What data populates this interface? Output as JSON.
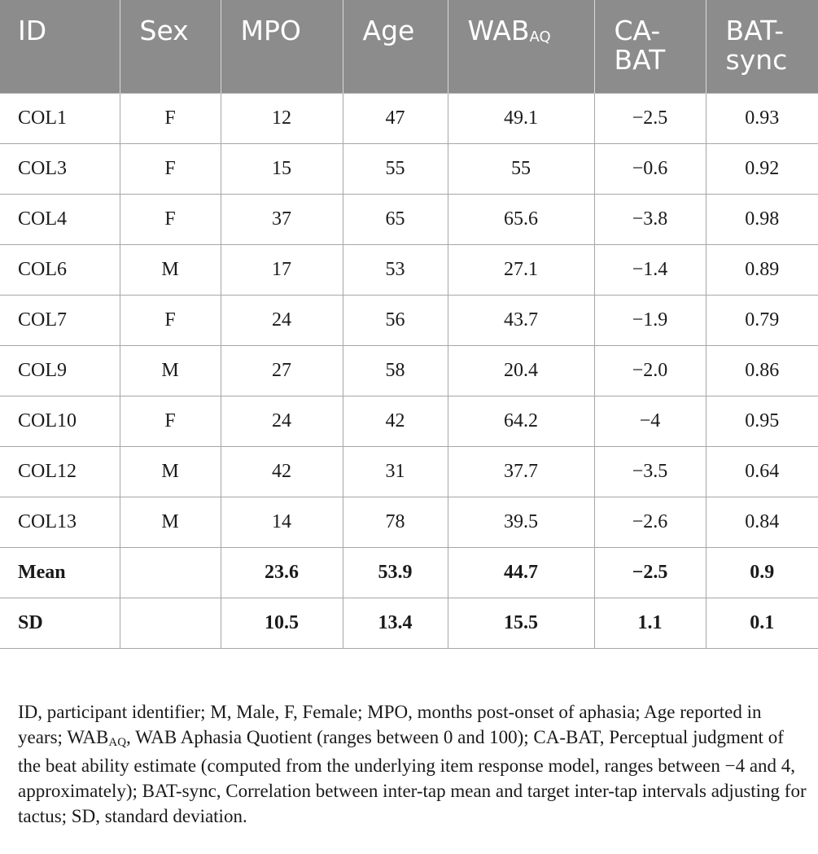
{
  "table": {
    "headers": {
      "id": "ID",
      "sex": "Sex",
      "mpo": "MPO",
      "age": "Age",
      "wab": "WAB",
      "wab_sub": "AQ",
      "cabat": "CA-BAT",
      "batsync": "BAT-sync"
    },
    "rows": [
      [
        "COL1",
        "F",
        "12",
        "47",
        "49.1",
        "−2.5",
        "0.93"
      ],
      [
        "COL3",
        "F",
        "15",
        "55",
        "55",
        "−0.6",
        "0.92"
      ],
      [
        "COL4",
        "F",
        "37",
        "65",
        "65.6",
        "−3.8",
        "0.98"
      ],
      [
        "COL6",
        "M",
        "17",
        "53",
        "27.1",
        "−1.4",
        "0.89"
      ],
      [
        "COL7",
        "F",
        "24",
        "56",
        "43.7",
        "−1.9",
        "0.79"
      ],
      [
        "COL9",
        "M",
        "27",
        "58",
        "20.4",
        "−2.0",
        "0.86"
      ],
      [
        "COL10",
        "F",
        "24",
        "42",
        "64.2",
        "−4",
        "0.95"
      ],
      [
        "COL12",
        "M",
        "42",
        "31",
        "37.7",
        "−3.5",
        "0.64"
      ],
      [
        "COL13",
        "M",
        "14",
        "78",
        "39.5",
        "−2.6",
        "0.84"
      ]
    ],
    "summary": [
      [
        "Mean",
        "",
        "23.6",
        "53.9",
        "44.7",
        "−2.5",
        "0.9"
      ],
      [
        "SD",
        "",
        "10.5",
        "13.4",
        "15.5",
        "1.1",
        "0.1"
      ]
    ]
  },
  "footnote": {
    "part1": "ID, participant identifier; M, Male, F, Female; MPO, months post-onset of aphasia; Age reported in years; WAB",
    "sub": "AQ",
    "part2": ", WAB Aphasia Quotient (ranges between 0 and 100); CA-BAT, Perceptual judgment of the beat ability estimate (computed from the underlying item response model, ranges between −4 and 4, approximately); BAT-sync, Correlation between inter-tap mean and target inter-tap intervals adjusting for tactus; SD, standard deviation."
  }
}
